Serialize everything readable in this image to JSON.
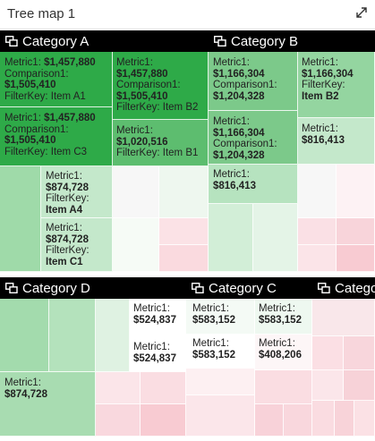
{
  "header": {
    "title": "Tree map 1",
    "expand_icon": "expand-diagonal-icon"
  },
  "colors": {
    "header_bg": "#000000",
    "green_strong": "#2eaa48",
    "green_mid": "#7fcf8e",
    "green_light": "#c4e8cb",
    "red_light": "#f8cbd2",
    "neutral": "#f7f7f7"
  },
  "chart_data": {
    "type": "treemap",
    "measures": [
      "Metric1",
      "Comparison1"
    ],
    "groups": [
      {
        "name": "Category A",
        "items": [
          {
            "filter_key": "Item A1",
            "metric1": "$1,457,880",
            "comparison1": "$1,505,410"
          },
          {
            "filter_key": "Item B2",
            "metric1": "$1,457,880",
            "comparison1": "$1,505,410"
          },
          {
            "filter_key": "Item C3",
            "metric1": "$1,457,880",
            "comparison1": "$1,505,410"
          },
          {
            "filter_key": "Item B1",
            "metric1": "$1,020,516"
          },
          {
            "filter_key": "Item A4",
            "metric1": "$874,728"
          },
          {
            "filter_key": "Item C1",
            "metric1": "$874,728"
          }
        ]
      },
      {
        "name": "Category B",
        "items": [
          {
            "metric1": "$1,166,304",
            "comparison1": "$1,204,328"
          },
          {
            "filter_key": "Item B2",
            "metric1": "$1,166,304"
          },
          {
            "metric1": "$1,166,304",
            "comparison1": "$1,204,328"
          },
          {
            "metric1": "$816,413"
          },
          {
            "metric1": "$816,413"
          }
        ]
      },
      {
        "name": "Category D",
        "items": [
          {
            "metric1": "$874,728"
          }
        ]
      },
      {
        "name": "Category C",
        "items": [
          {
            "metric1": "$524,837"
          },
          {
            "metric1": "$583,152"
          },
          {
            "metric1": "$583,152"
          },
          {
            "metric1": "$524,837"
          },
          {
            "metric1": "$583,152"
          },
          {
            "metric1": "$408,206"
          }
        ]
      },
      {
        "name": "Catego",
        "items": []
      }
    ]
  }
}
